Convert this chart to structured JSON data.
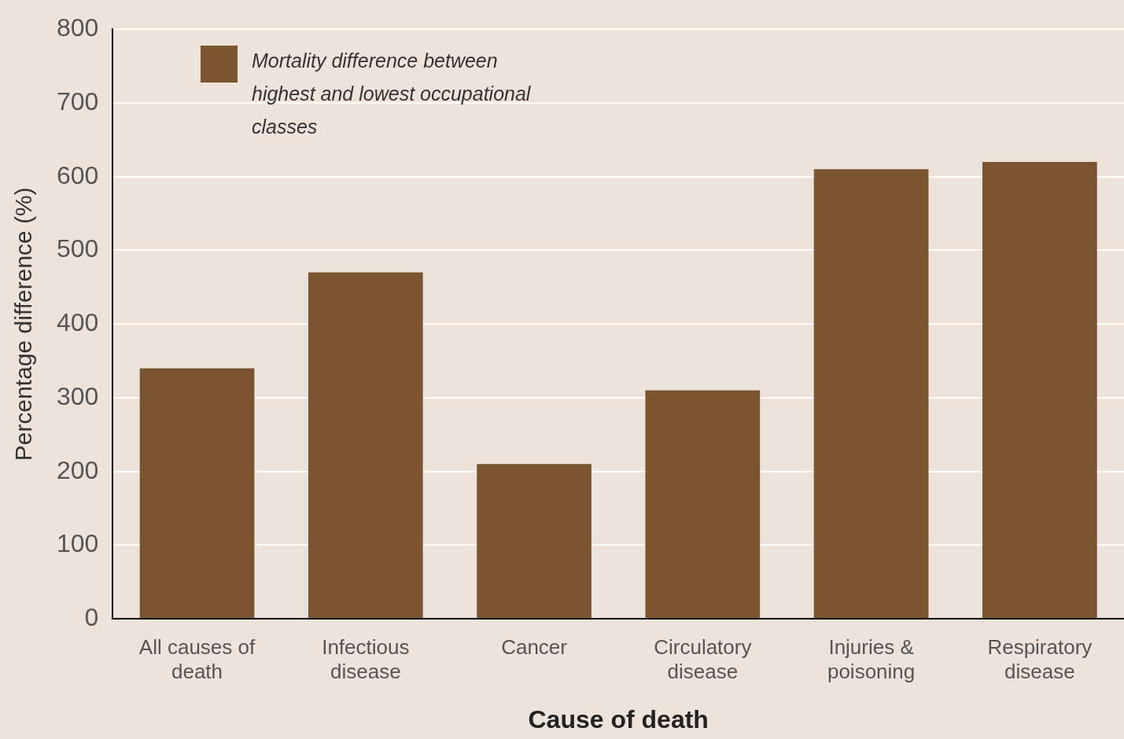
{
  "chart_data": {
    "type": "bar",
    "xlabel": "Cause of death",
    "ylabel": "Percentage difference (%)",
    "categories": [
      "All causes of death",
      "Infectious disease",
      "Cancer",
      "Circulatory disease",
      "Injuries & poisoning",
      "Respiratory disease"
    ],
    "series": [
      {
        "name": "Mortality difference between highest and lowest occupational classes",
        "color": "#7b5430",
        "values": [
          340,
          470,
          210,
          310,
          610,
          620
        ]
      }
    ],
    "ylim": [
      0,
      800
    ],
    "yticks": [
      0,
      100,
      200,
      300,
      400,
      500,
      600,
      700,
      800
    ],
    "grid": "y",
    "legend": "top left"
  }
}
